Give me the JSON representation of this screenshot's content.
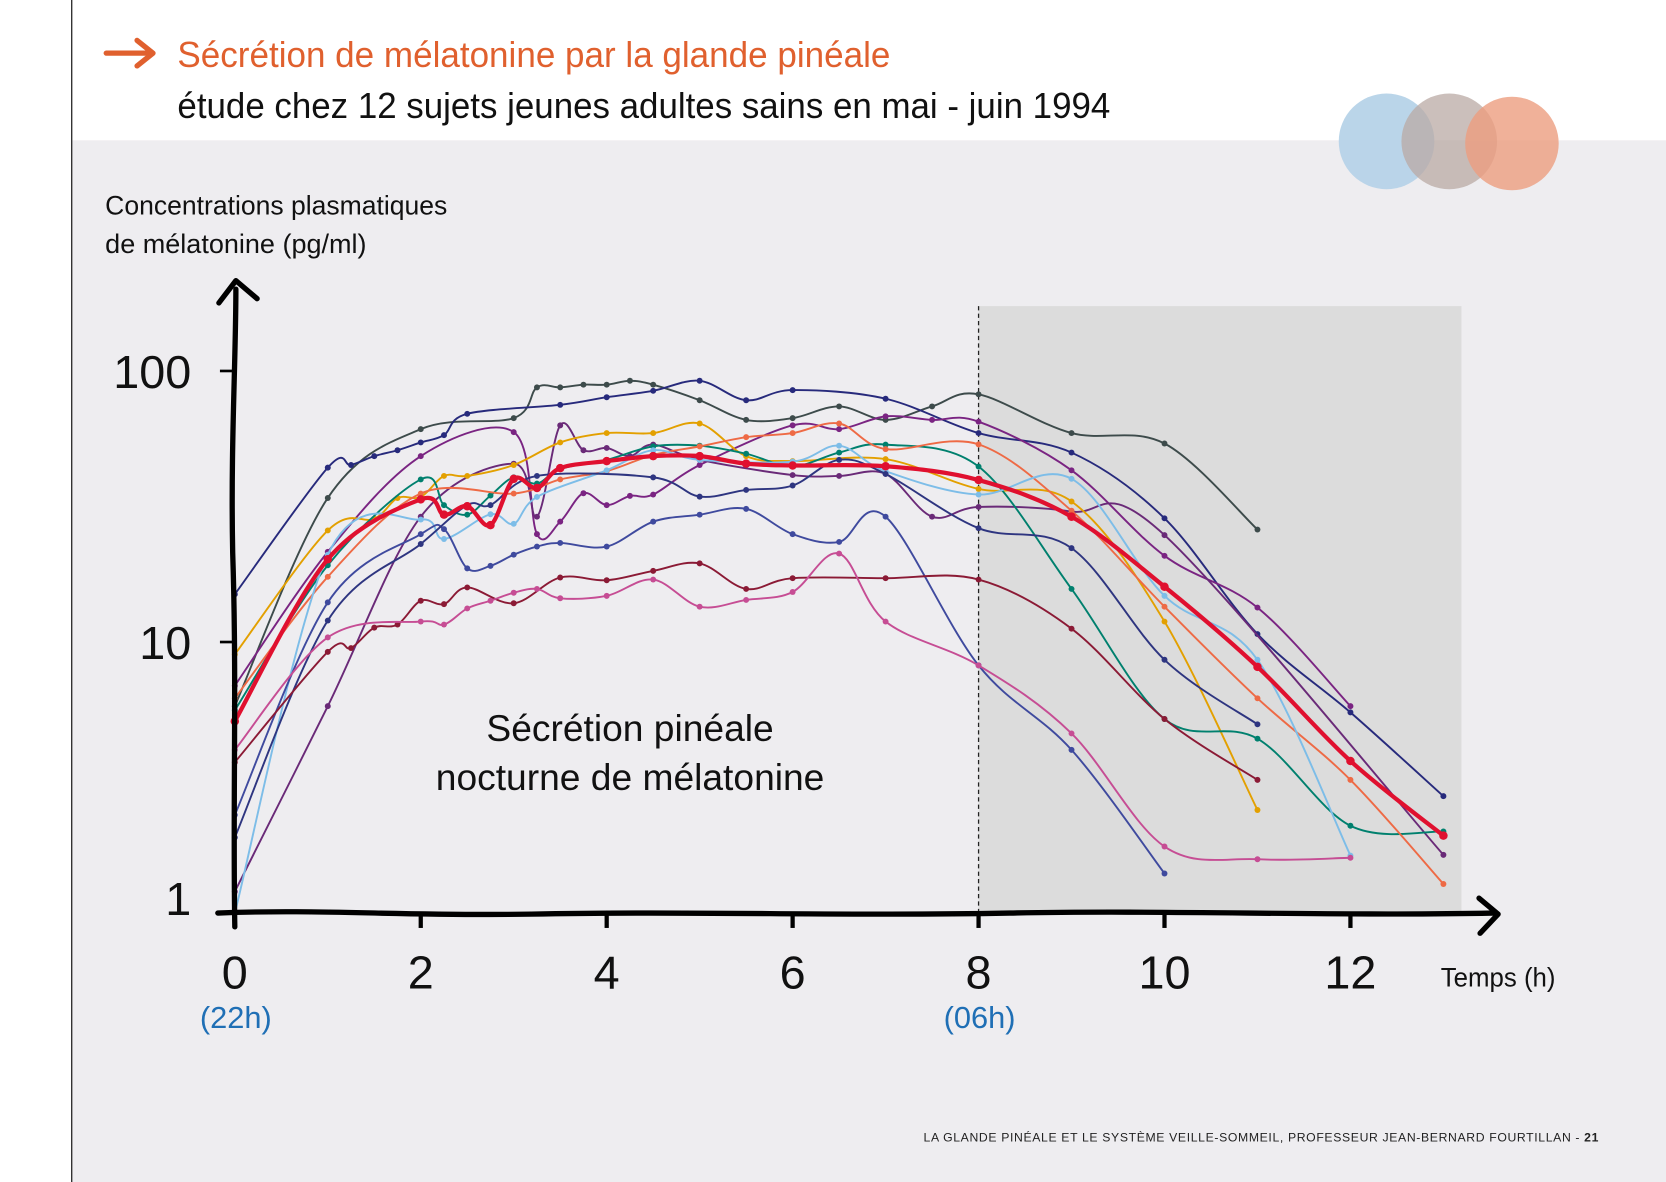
{
  "header": {
    "title": "Sécrétion de mélatonine par la glande pinéale",
    "subtitle": "étude chez 12 sujets jeunes adultes sains en mai - juin 1994",
    "title_color": "#e0602e",
    "arrow_icon": "right-arrow-icon",
    "logo_colors": [
      "#b6d3e8",
      "#c9b9b3",
      "#eea98e"
    ]
  },
  "footer": {
    "text": "LA GLANDE PINÉALE ET LE SYSTÈME VEILLE-SOMMEIL, PROFESSEUR JEAN-BERNARD FOURTILLAN - ",
    "page": "21"
  },
  "chart_data": {
    "type": "line",
    "ylabel": [
      "Concentrations plasmatiques",
      "de mélatonine (pg/ml)"
    ],
    "xlabel": "Temps (h)",
    "y_scale": "log",
    "ylim": [
      1,
      100
    ],
    "y_ticks": [
      "100",
      "10",
      "1"
    ],
    "y_tick_values": [
      100,
      10,
      1
    ],
    "xlim": [
      0,
      13
    ],
    "x_ticks": [
      "0",
      "2",
      "4",
      "6",
      "8",
      "10",
      "12"
    ],
    "x_tick_values": [
      0,
      2,
      4,
      6,
      8,
      10,
      12
    ],
    "x_clock_labels": [
      {
        "x": 0,
        "label": "(22h)"
      },
      {
        "x": 8,
        "label": "(06h)"
      }
    ],
    "clock_label_color": "#1f6fb5",
    "annotation": [
      "Sécrétion pinéale",
      "nocturne de mélatonine"
    ],
    "shaded_region": {
      "from": 8,
      "to": 13,
      "color": "#dcdcdc"
    },
    "dashed_line_x": 8,
    "grid": false,
    "series": [
      {
        "color": "#3d4b4b",
        "x": [
          0,
          1,
          2,
          3,
          3.25,
          3.5,
          3.75,
          4,
          4.25,
          4.5,
          5,
          5.5,
          6,
          6.5,
          7,
          7.5,
          8,
          9,
          10,
          11
        ],
        "y": [
          5.8,
          34,
          61,
          67,
          87,
          87,
          89,
          89,
          92,
          89,
          78,
          66,
          67,
          74,
          66,
          74,
          82,
          59,
          54,
          26
        ]
      },
      {
        "color": "#272a7c",
        "x": [
          0,
          1,
          1.25,
          1.5,
          1.75,
          2,
          2.25,
          2.5,
          3.5,
          4,
          4.5,
          5,
          5.5,
          6,
          7,
          8,
          9,
          10,
          11,
          12,
          13
        ],
        "y": [
          15,
          44,
          45,
          48.5,
          51,
          54.5,
          58,
          69.5,
          75,
          80,
          84.5,
          92,
          78,
          85,
          79,
          59,
          50,
          28.6,
          10.7,
          5.5,
          2.7
        ]
      },
      {
        "color": "#7a2482",
        "x": [
          0,
          1,
          2,
          3,
          3.25,
          3.5,
          3.75,
          4,
          4.25,
          4.5,
          5,
          6,
          6.5,
          7,
          7.5,
          8,
          9,
          10,
          11,
          12
        ],
        "y": [
          6.9,
          21.5,
          48.5,
          59.5,
          25,
          27.8,
          35.4,
          32,
          34.6,
          35,
          45,
          63,
          61,
          68,
          66,
          65,
          43,
          20.8,
          13.4,
          5.8
        ]
      },
      {
        "color": "#6a2a78",
        "x": [
          0,
          1,
          2,
          3,
          3.25,
          3.5,
          3.75,
          4,
          4.25,
          4.5,
          5,
          6,
          6.5,
          7,
          7.5,
          8,
          9,
          10,
          13
        ],
        "y": [
          1.2,
          5.8,
          29,
          45.5,
          29,
          63,
          51,
          52,
          48.5,
          53.5,
          47,
          41.3,
          41,
          41.7,
          29,
          31.5,
          30.3,
          24.8,
          1.64
        ]
      },
      {
        "color": "#e3a000",
        "x": [
          0,
          1,
          1.5,
          1.75,
          2,
          2.25,
          2.5,
          3,
          3.5,
          4,
          4.5,
          5,
          5.5,
          6,
          7,
          8,
          9,
          10,
          11
        ],
        "y": [
          9,
          25.8,
          28.5,
          34,
          34.3,
          41,
          41,
          45,
          54.5,
          59,
          59,
          64,
          48.5,
          46.5,
          47.3,
          36.7,
          33,
          11.9,
          2.4
        ]
      },
      {
        "color": "#00806e",
        "x": [
          0,
          1,
          2,
          2.25,
          2.5,
          2.75,
          3,
          3.25,
          3.5,
          4,
          4.5,
          5,
          5.5,
          6,
          6.5,
          7,
          8,
          9,
          10,
          11,
          12,
          13
        ],
        "y": [
          5.6,
          19.2,
          39.8,
          32,
          29.5,
          34.7,
          40.5,
          38.4,
          43.5,
          47,
          52.7,
          53,
          49.5,
          44.5,
          50,
          53.5,
          44.4,
          15.7,
          5.2,
          4.4,
          2.1,
          2.0
        ]
      },
      {
        "color": "#ee6a45",
        "x": [
          0,
          1,
          2,
          3,
          3.5,
          4,
          4.5,
          5,
          5.5,
          6,
          6.5,
          7,
          8,
          9,
          10,
          11,
          12,
          13
        ],
        "y": [
          6.2,
          17.4,
          35.3,
          35.3,
          39.8,
          42.7,
          49,
          52.7,
          57,
          59,
          64,
          51.5,
          53.6,
          30.5,
          13.5,
          6.2,
          3.1,
          1.28
        ]
      },
      {
        "color": "#7dbde8",
        "x": [
          0,
          1,
          2,
          2.25,
          2.75,
          3,
          3.25,
          4,
          4.5,
          5,
          6,
          6.5,
          7,
          8,
          9,
          10,
          11,
          12
        ],
        "y": [
          1.0,
          21,
          28.3,
          24,
          29.6,
          27.3,
          34.3,
          43,
          51,
          47,
          46.3,
          53,
          42.7,
          35,
          40,
          14.8,
          8.6,
          1.63
        ]
      },
      {
        "color": "#3f4a9e",
        "x": [
          0,
          1,
          2,
          2.25,
          2.5,
          2.75,
          3,
          3.25,
          3.5,
          4,
          4.5,
          5,
          5.5,
          6,
          6.5,
          7,
          8,
          9,
          10
        ],
        "y": [
          2.3,
          14,
          25,
          26.1,
          18.7,
          19.1,
          21,
          22.5,
          23.2,
          22.5,
          27.8,
          29.5,
          31,
          25,
          23.4,
          29,
          8.2,
          4,
          1.4
        ]
      },
      {
        "color": "#2e3580",
        "x": [
          0,
          1,
          2,
          2.5,
          2.75,
          3.25,
          4.5,
          5,
          5.5,
          6,
          6.5,
          7,
          8,
          9,
          10,
          11
        ],
        "y": [
          1.9,
          12,
          23,
          32,
          32,
          41,
          40.5,
          34.4,
          36.4,
          37.8,
          47,
          41.7,
          26.3,
          22.2,
          8.6,
          4.97
        ]
      },
      {
        "color": "#8b1a35",
        "x": [
          0,
          1,
          1.25,
          1.5,
          1.75,
          2,
          2.25,
          2.5,
          3,
          3.5,
          4,
          4.5,
          5,
          5.5,
          6,
          7,
          8,
          9,
          10,
          11
        ],
        "y": [
          3.6,
          9.2,
          9.5,
          11.3,
          11.6,
          14.2,
          13.8,
          15.9,
          13.9,
          17.3,
          16.9,
          18.3,
          19.5,
          15.7,
          17.2,
          17.2,
          17,
          11.2,
          5.2,
          3.1
        ]
      },
      {
        "color": "#c64d94",
        "x": [
          0,
          1,
          2,
          2.25,
          2.5,
          2.75,
          3,
          3.25,
          3.5,
          4,
          4.5,
          5,
          5.5,
          6,
          6.5,
          7,
          8,
          9,
          10,
          11,
          12
        ],
        "y": [
          4,
          10.4,
          11.9,
          11.6,
          13.3,
          14.2,
          15.2,
          15.7,
          14.5,
          14.8,
          17,
          13.5,
          14.3,
          15.3,
          21.2,
          11.9,
          8.2,
          4.6,
          1.76,
          1.58,
          1.6
        ]
      },
      {
        "color": "#e0102f",
        "mean": true,
        "x": [
          0,
          1,
          2,
          2.25,
          2.5,
          2.75,
          3,
          3.25,
          3.5,
          4,
          4.5,
          5,
          5.5,
          6,
          7,
          8,
          9,
          10,
          11,
          12,
          13
        ],
        "y": [
          5.1,
          20.2,
          33.6,
          29.5,
          31.7,
          27,
          40,
          37,
          43.8,
          46.5,
          48.5,
          48.5,
          45.5,
          44.8,
          44.5,
          39.6,
          29,
          16,
          8.1,
          3.64,
          1.93
        ]
      }
    ]
  }
}
